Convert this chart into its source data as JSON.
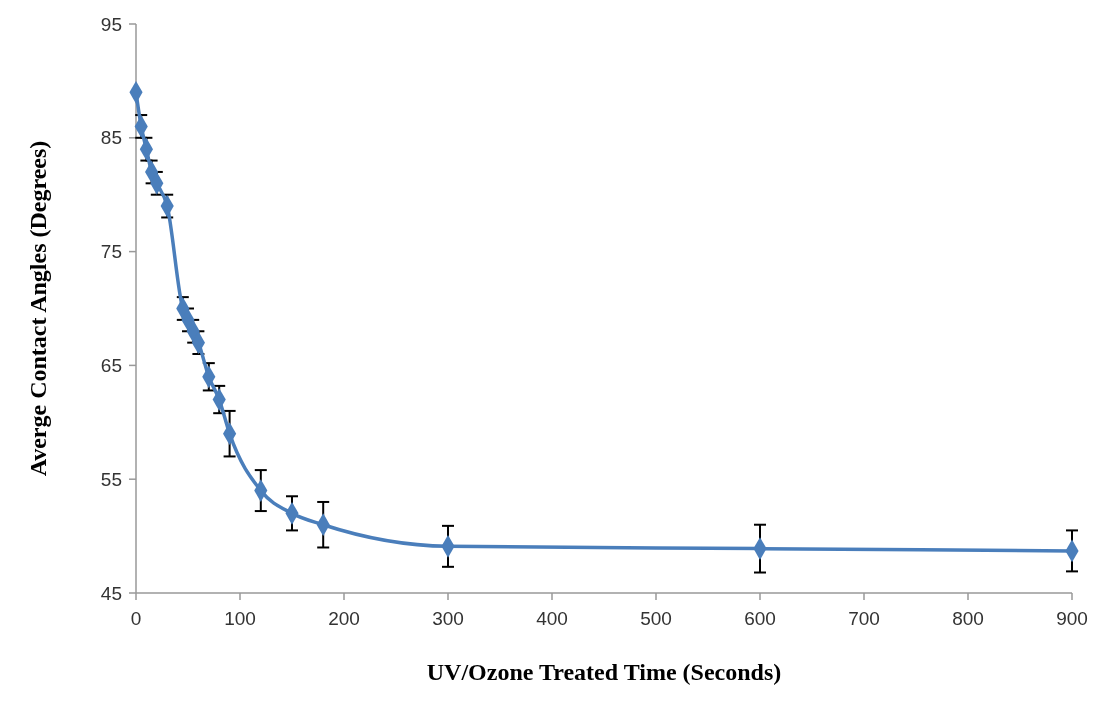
{
  "chart_data": {
    "type": "line",
    "xlabel": "UV/Ozone Treated Time (Seconds)",
    "ylabel": "Averge Contact Angles (Degrees)",
    "x": [
      0,
      5,
      10,
      15,
      20,
      30,
      45,
      50,
      55,
      60,
      70,
      80,
      90,
      120,
      150,
      180,
      300,
      600,
      900
    ],
    "series": [
      {
        "color": "#4a7ebb",
        "values": [
          89,
          86,
          84,
          82,
          81,
          79,
          70,
          69,
          68,
          67,
          64,
          62,
          59,
          54,
          52,
          51,
          49.1,
          48.9,
          48.7
        ],
        "errors": [
          null,
          1,
          1,
          1,
          1,
          1,
          1,
          1,
          1,
          1,
          1.2,
          1.2,
          2,
          1.8,
          1.5,
          2,
          1.8,
          2.1,
          1.8
        ]
      }
    ],
    "xlim": [
      0,
      900
    ],
    "ylim": [
      45,
      95
    ],
    "xticks": [
      0,
      100,
      200,
      300,
      400,
      500,
      600,
      700,
      800,
      900
    ],
    "yticks": [
      45,
      55,
      65,
      75,
      85,
      95
    ],
    "grid": false,
    "marker": "diamond",
    "line_style": "solid"
  }
}
